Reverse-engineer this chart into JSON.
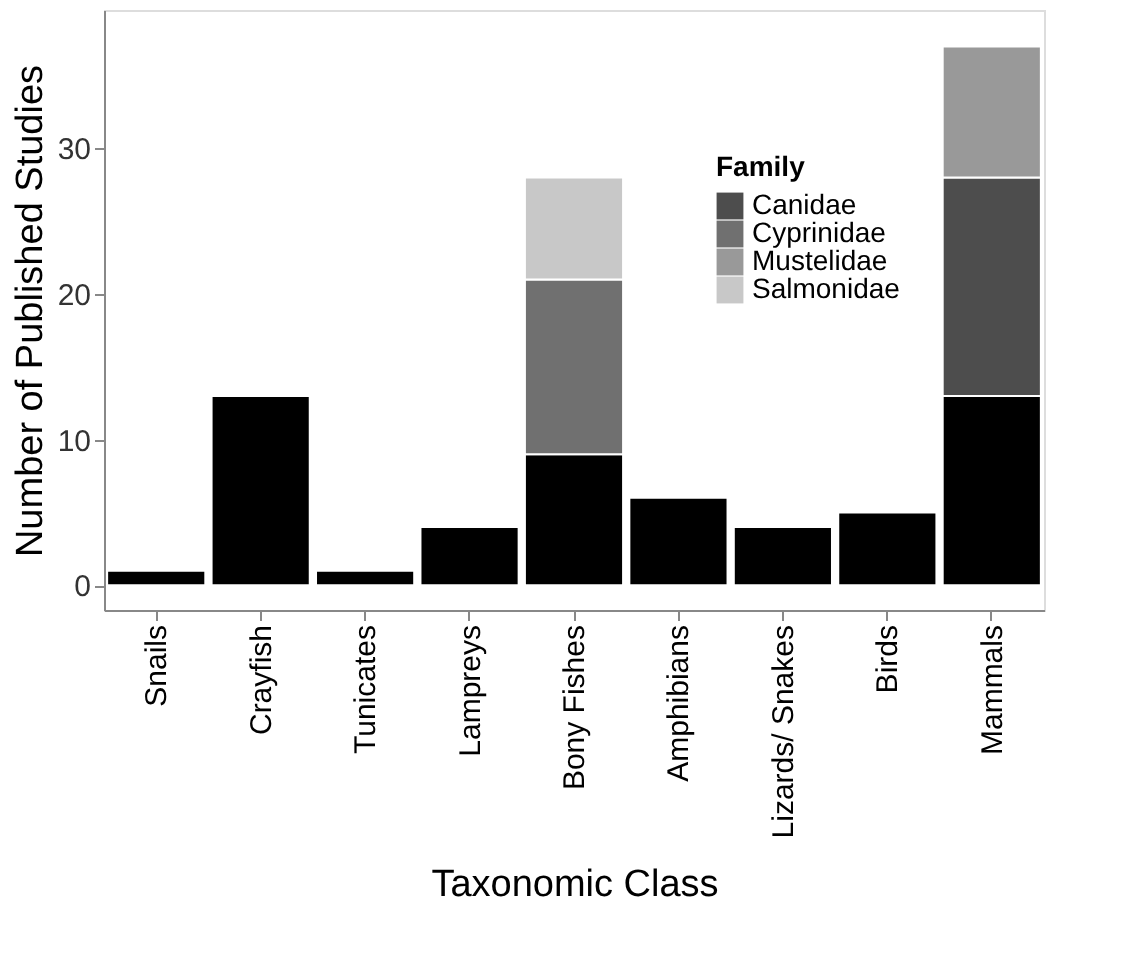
{
  "chart_data": {
    "type": "bar",
    "xlabel": "Taxonomic Class",
    "ylabel": "Number of Published Studies",
    "legend_title": "Family",
    "categories": [
      "Snails",
      "Crayfish",
      "Tunicates",
      "Lampreys",
      "Bony Fishes",
      "Amphibians",
      "Lizards/ Snakes",
      "Birds",
      "Mammals"
    ],
    "stacked": true,
    "series": [
      {
        "color": "#000000",
        "values": [
          1,
          13,
          1,
          4,
          9,
          6,
          4,
          5,
          13
        ]
      },
      {
        "name": "Canidae",
        "color": "#4d4d4d",
        "values": [
          0,
          0,
          0,
          0,
          0,
          0,
          0,
          0,
          15
        ]
      },
      {
        "name": "Cyprinidae",
        "color": "#707070",
        "values": [
          0,
          0,
          0,
          0,
          12,
          0,
          0,
          0,
          0
        ]
      },
      {
        "name": "Mustelidae",
        "color": "#999999",
        "values": [
          0,
          0,
          0,
          0,
          0,
          0,
          0,
          0,
          9
        ]
      },
      {
        "name": "Salmonidae",
        "color": "#c8c8c8",
        "values": [
          0,
          0,
          0,
          0,
          7,
          0,
          0,
          0,
          0
        ]
      }
    ],
    "ylim": [
      -1.7,
      39.5
    ],
    "yticks": [
      0,
      10,
      20,
      30
    ],
    "grid": false,
    "legend": "top right"
  }
}
